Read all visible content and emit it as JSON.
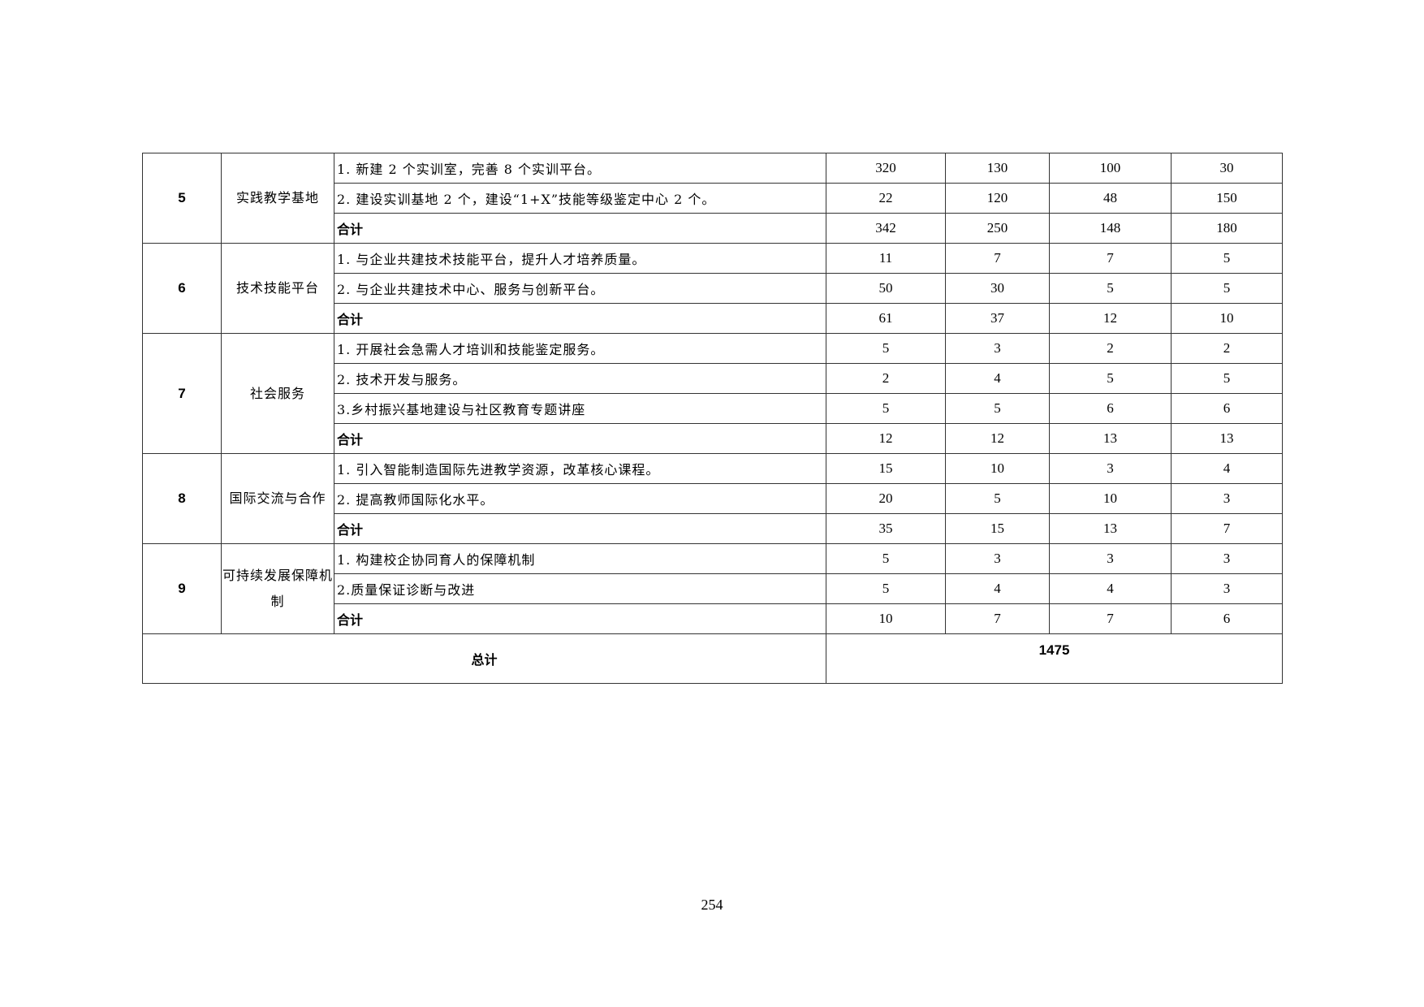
{
  "groups": [
    {
      "no": "5",
      "category": "实践教学基地",
      "items": [
        {
          "desc": "1. 新建 2 个实训室，完善 8 个实训平台。",
          "values": [
            "320",
            "130",
            "100",
            "30"
          ]
        },
        {
          "desc": "2. 建设实训基地 2 个，建设“1+X”技能等级鉴定中心 2 个。",
          "values": [
            "22",
            "120",
            "48",
            "150"
          ]
        },
        {
          "desc": "合计",
          "values": [
            "342",
            "250",
            "148",
            "180"
          ]
        }
      ]
    },
    {
      "no": "6",
      "category": "技术技能平台",
      "items": [
        {
          "desc": "1. 与企业共建技术技能平台，提升人才培养质量。",
          "values": [
            "11",
            "7",
            "7",
            "5"
          ]
        },
        {
          "desc": "2. 与企业共建技术中心、服务与创新平台。",
          "values": [
            "50",
            "30",
            "5",
            "5"
          ]
        },
        {
          "desc": "合计",
          "values": [
            "61",
            "37",
            "12",
            "10"
          ]
        }
      ]
    },
    {
      "no": "7",
      "category": "社会服务",
      "items": [
        {
          "desc": "1. 开展社会急需人才培训和技能鉴定服务。",
          "values": [
            "5",
            "3",
            "2",
            "2"
          ]
        },
        {
          "desc": "2. 技术开发与服务。",
          "values": [
            "2",
            "4",
            "5",
            "5"
          ]
        },
        {
          "desc": "3.乡村振兴基地建设与社区教育专题讲座",
          "values": [
            "5",
            "5",
            "6",
            "6"
          ]
        },
        {
          "desc": "合计",
          "values": [
            "12",
            "12",
            "13",
            "13"
          ]
        }
      ]
    },
    {
      "no": "8",
      "category": "国际交流与合作",
      "items": [
        {
          "desc": "1. 引入智能制造国际先进教学资源，改革核心课程。",
          "values": [
            "15",
            "10",
            "3",
            "4"
          ]
        },
        {
          "desc": "2. 提高教师国际化水平。",
          "values": [
            "20",
            "5",
            "10",
            "3"
          ]
        },
        {
          "desc": "合计",
          "values": [
            "35",
            "15",
            "13",
            "7"
          ]
        }
      ]
    },
    {
      "no": "9",
      "category": "可持续发展保障机制",
      "items": [
        {
          "desc": "1. 构建校企协同育人的保障机制",
          "values": [
            "5",
            "3",
            "3",
            "3"
          ]
        },
        {
          "desc": "2.质量保证诊断与改进",
          "values": [
            "5",
            "4",
            "4",
            "3"
          ]
        },
        {
          "desc": "合计",
          "values": [
            "10",
            "7",
            "7",
            "6"
          ]
        }
      ]
    }
  ],
  "total": {
    "label": "总计",
    "value": "1475"
  },
  "page_number": "254"
}
